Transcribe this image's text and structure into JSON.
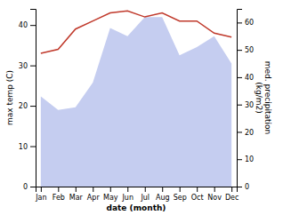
{
  "chart_data": {
    "type": "line",
    "xlabel": "date (month)",
    "ylabel": "max temp (C)",
    "y2label": "med. precipitation\n(kg/m2)",
    "categories": [
      "Jan",
      "Feb",
      "Mar",
      "Apr",
      "May",
      "Jun",
      "Jul",
      "Aug",
      "Sep",
      "Oct",
      "Nov",
      "Dec"
    ],
    "series": [
      {
        "type": "area",
        "color": "#c5cdf0",
        "axis": "y2",
        "values": [
          33,
          28,
          29,
          38,
          58,
          55,
          62,
          62,
          48,
          51,
          55,
          45
        ]
      },
      {
        "type": "line",
        "color": "#c0392b",
        "values": [
          33,
          34,
          39,
          41,
          43,
          43.5,
          42,
          43,
          41,
          41,
          38,
          37
        ]
      }
    ],
    "ylim": [
      0,
      44
    ],
    "yticks": [
      0,
      10,
      20,
      30,
      40
    ],
    "y2lim": [
      0,
      65
    ],
    "y2ticks": [
      0,
      10,
      20,
      30,
      40,
      50,
      60
    ]
  }
}
